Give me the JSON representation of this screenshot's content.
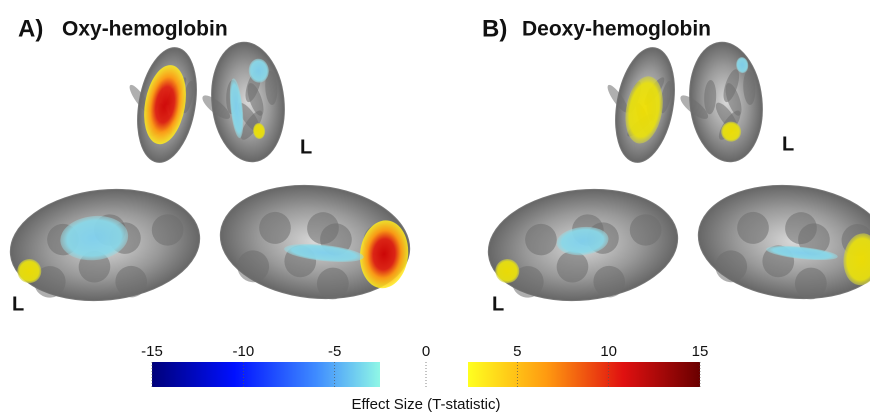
{
  "panels": [
    {
      "label": "A)",
      "title": "Oxy-hemoglobin",
      "side_labels": [
        "L",
        "L"
      ]
    },
    {
      "label": "B)",
      "title": "Deoxy-hemoglobin",
      "side_labels": [
        "L",
        "L"
      ]
    }
  ],
  "colorbar": {
    "range": [
      -15,
      15
    ],
    "ticks": [
      -15,
      -10,
      -5,
      0,
      5,
      10,
      15
    ],
    "label": "Effect Size (T-statistic)"
  }
}
